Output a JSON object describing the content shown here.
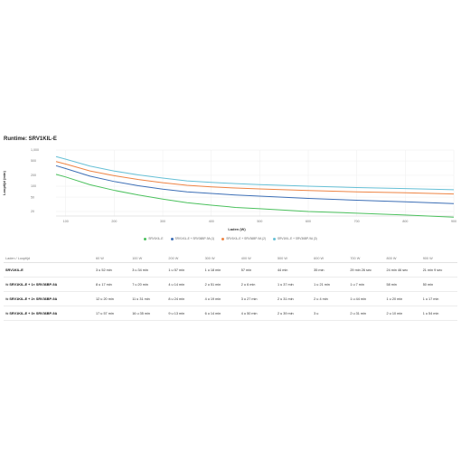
{
  "page": {
    "title": "Runtime: SRV1KIL-E"
  },
  "chart_data": {
    "type": "line",
    "title": "",
    "xlabel": "Laden (W)",
    "ylabel": "Looptijd (min)",
    "x_ticks": [
      "100",
      "200",
      "300",
      "400",
      "500",
      "600",
      "700",
      "800",
      "900"
    ],
    "y_ticks": [
      "20",
      "50",
      "100",
      "200",
      "500",
      "1,000"
    ],
    "xlim": [
      80,
      900
    ],
    "ylim": [
      15,
      1000
    ],
    "y_scale": "log",
    "grid": true,
    "legend_position": "bottom",
    "series": [
      {
        "name": "SRV1KIL-E",
        "color": "#4cc15e",
        "x": [
          80,
          100,
          150,
          200,
          250,
          300,
          350,
          400,
          450,
          500,
          600,
          700,
          800,
          900
        ],
        "y": [
          213,
          180,
          110,
          77,
          57,
          44,
          35,
          30,
          26,
          24,
          20,
          18,
          16,
          14
        ]
      },
      {
        "name": "SRV1KIL-E + SRV36BP-9A (1)",
        "color": "#3d6fb6",
        "x": [
          80,
          100,
          150,
          200,
          250,
          300,
          350,
          400,
          450,
          500,
          600,
          700,
          800,
          900
        ],
        "y": [
          369,
          307,
          190,
          135,
          103,
          83,
          70,
          63,
          57,
          53,
          46,
          41,
          37,
          33
        ]
      },
      {
        "name": "SRV1KIL-E + SRV36BP-9A (2)",
        "color": "#ee8444",
        "x": [
          80,
          100,
          150,
          200,
          250,
          300,
          350,
          400,
          450,
          500,
          600,
          700,
          800,
          900
        ],
        "y": [
          480,
          410,
          265,
          195,
          153,
          125,
          106,
          96,
          89,
          84,
          76,
          70,
          66,
          61
        ]
      },
      {
        "name": "SRV1KIL-E + SRV36BP-9A (3)",
        "color": "#67c0d6",
        "x": [
          80,
          100,
          150,
          200,
          250,
          300,
          350,
          400,
          450,
          500,
          600,
          700,
          800,
          900
        ],
        "y": [
          660,
          560,
          360,
          263,
          206,
          168,
          140,
          128,
          118,
          111,
          100,
          92,
          86,
          80
        ]
      }
    ]
  },
  "table": {
    "header_label": "Laden / Looptijd",
    "columns": [
      "60 W",
      "100 W",
      "200 W",
      "300 W",
      "400 W",
      "500 W",
      "600 W",
      "700 W",
      "800 W",
      "900 W"
    ],
    "rows": [
      {
        "config": "SRV1KIL-E",
        "icon": "",
        "cells": [
          "3 u 52 min",
          "3 u 34 min",
          "1 u 57 min",
          "1 u 18 min",
          "57 min",
          "44 min",
          "35 min",
          "29 min 26 sec",
          "24 min 46 sec",
          "21 min 9 sec"
        ]
      },
      {
        "config": "SRV1KIL-E + 1× SRV36BP-9A",
        "icon": "⇋",
        "cells": [
          "8 u 17 min",
          "7 u 20 min",
          "4 u 14 min",
          "2 u 51 min",
          "2 u 6 min",
          "1 u 37 min",
          "1 u 21 min",
          "1 u 7 min",
          "58 min",
          "50 min"
        ]
      },
      {
        "config": "SRV1KIL-E + 2× SRV36BP-9A",
        "icon": "⇋",
        "cells": [
          "12 u 20 min",
          "11 u 31 min",
          "8 u 24 min",
          "4 u 19 min",
          "3 u 27 min",
          "2 u 31 min",
          "2 u 4 min",
          "1 u 44 min",
          "1 u 20 min",
          "1 u 17 min"
        ]
      },
      {
        "config": "SRV1KIL-E + 3× SRV36BP-9A",
        "icon": "⇋",
        "cells": [
          "17 u 57 min",
          "16 u 35 min",
          "9 u 13 min",
          "6 u 14 min",
          "4 u 50 min",
          "2 u 39 min",
          "3 u",
          "2 u 31 min",
          "2 u 10 min",
          "1 u 54 min"
        ]
      }
    ]
  }
}
